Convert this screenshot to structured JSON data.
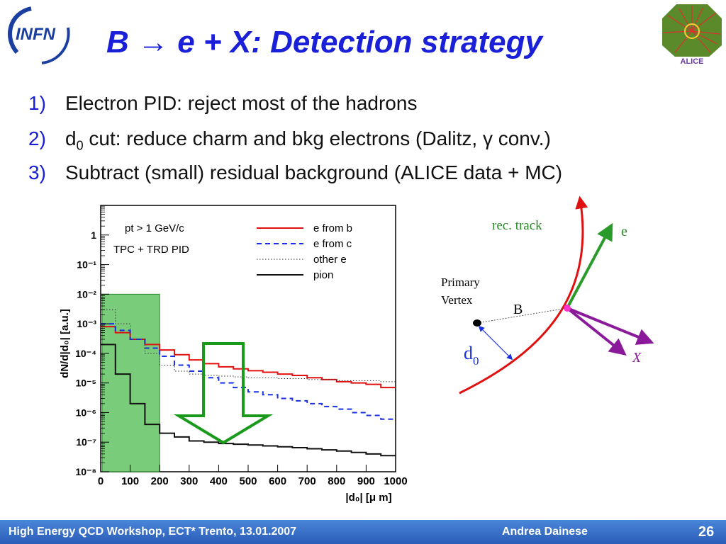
{
  "slide": {
    "title": "B → e + X: Detection strategy",
    "bullets": [
      {
        "num": "1)",
        "text": "Electron PID: reject most of the hadrons"
      },
      {
        "num": "2)",
        "pre": "d",
        "sub": "0",
        "text": " cut: reduce charm and bkg electrons (Dalitz, γ conv.)"
      },
      {
        "num": "3)",
        "text": "Subtract (small) residual background (ALICE data + MC)"
      }
    ],
    "logo_left": "INFN",
    "logo_right": "ALICE"
  },
  "footer": {
    "left": "High Energy QCD Workshop, ECT* Trento, 13.01.2007",
    "center": "Andrea Dainese",
    "page": "26"
  },
  "chart_data": {
    "type": "line",
    "ylabel": "dN/d|d₀| [a.u.]",
    "xlabel": "|d₀| [μ m]",
    "xlim": [
      0,
      1000
    ],
    "ylim": [
      1e-08,
      10
    ],
    "yscale": "log",
    "x_ticks": [
      "0",
      "100",
      "200",
      "300",
      "400",
      "500",
      "600",
      "700",
      "800",
      "900",
      "1000"
    ],
    "y_ticks": [
      "10⁻⁸",
      "10⁻⁷",
      "10⁻⁶",
      "10⁻⁵",
      "10⁻⁴",
      "10⁻³",
      "10⁻²",
      "10⁻¹",
      "1"
    ],
    "annotations": [
      "pt > 1 GeV/c",
      "TPC + TRD  PID"
    ],
    "cut_region": [
      0,
      200
    ],
    "series": [
      {
        "name": "e from b",
        "color": "#e01010",
        "style": "solid",
        "x": [
          0,
          50,
          100,
          150,
          200,
          250,
          300,
          350,
          400,
          450,
          500,
          550,
          600,
          650,
          700,
          750,
          800,
          850,
          900,
          950,
          1000
        ],
        "y": [
          0.0008,
          0.0005,
          0.0003,
          0.0002,
          0.00013,
          9e-05,
          6e-05,
          4.5e-05,
          3.5e-05,
          3e-05,
          2.6e-05,
          2.3e-05,
          2e-05,
          1.8e-05,
          1.5e-05,
          1.3e-05,
          1.1e-05,
          1e-05,
          9e-06,
          7e-06,
          6e-06
        ]
      },
      {
        "name": "e from c",
        "color": "#1a30e0",
        "style": "dashed",
        "x": [
          0,
          50,
          100,
          150,
          200,
          250,
          300,
          350,
          400,
          450,
          500,
          550,
          600,
          650,
          700,
          750,
          800,
          850,
          900,
          950,
          1000
        ],
        "y": [
          0.001,
          0.0006,
          0.0003,
          0.00015,
          8e-05,
          4e-05,
          2.5e-05,
          1.5e-05,
          1e-05,
          7e-06,
          5e-06,
          4e-06,
          3e-06,
          2.5e-06,
          2e-06,
          1.6e-06,
          1.3e-06,
          1e-06,
          8e-07,
          6e-07,
          5e-07
        ]
      },
      {
        "name": "other e",
        "color": "#333333",
        "style": "dotted",
        "x": [
          0,
          50,
          100,
          150,
          200,
          250,
          300,
          350,
          400,
          450,
          500,
          550,
          600,
          650,
          700,
          750,
          800,
          850,
          900,
          950,
          1000
        ],
        "y": [
          0.003,
          0.001,
          0.0003,
          0.0001,
          4e-05,
          2.5e-05,
          2e-05,
          1.8e-05,
          1.7e-05,
          1.6e-05,
          1.5e-05,
          1.5e-05,
          1.4e-05,
          1.4e-05,
          1.3e-05,
          1.3e-05,
          1.2e-05,
          1.2e-05,
          1.2e-05,
          1.1e-05,
          1.1e-05
        ]
      },
      {
        "name": "pion",
        "color": "#111111",
        "style": "solid",
        "x": [
          0,
          50,
          100,
          150,
          200,
          250,
          300,
          350,
          400,
          450,
          500,
          550,
          600,
          650,
          700,
          750,
          800,
          850,
          900,
          950,
          1000
        ],
        "y": [
          0.0002,
          2e-05,
          2e-06,
          4e-07,
          2e-07,
          1.5e-07,
          1.1e-07,
          1e-07,
          9e-08,
          8.5e-08,
          8e-08,
          7.5e-08,
          7e-08,
          6.5e-08,
          6e-08,
          5.5e-08,
          5e-08,
          4.5e-08,
          4e-08,
          3.5e-08,
          3e-08
        ]
      }
    ]
  },
  "diagram": {
    "rec_track": "rec. track",
    "e": "e",
    "primary_vertex": "Primary\nVertex",
    "pv_line1": "Primary",
    "pv_line2": "Vertex",
    "b": "B",
    "d": "d",
    "d_sub": "0",
    "x": "X",
    "colors": {
      "track": "#e01010",
      "electron": "#2a9a2a",
      "x": "#8a1a9a",
      "vertex": "#ff33cc",
      "d0": "#1a30e0"
    }
  }
}
